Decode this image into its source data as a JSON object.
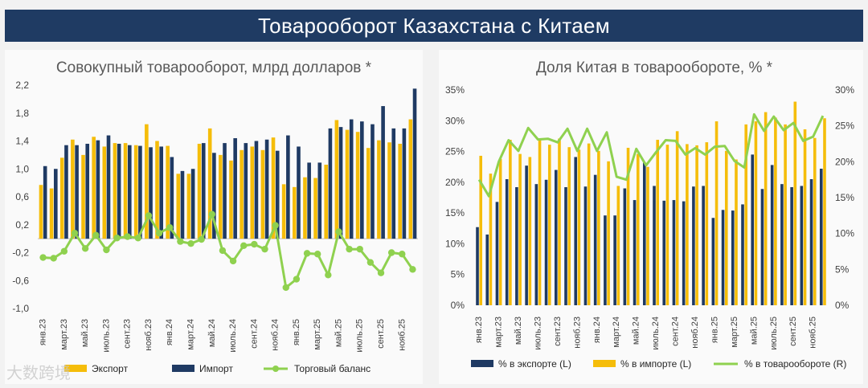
{
  "page_title": "Товарооборот Казахстана с Китаем",
  "watermark": "大数跨境",
  "colors": {
    "export": "#f5bd0a",
    "import": "#1f3a63",
    "line": "#8fd14f",
    "banner": "#1f3b63"
  },
  "chart_data": [
    {
      "type": "bar",
      "title": "Совокупный товарооборот, млрд долларов *",
      "ylim": [
        -1.0,
        2.2
      ],
      "yticks": [
        "2,2",
        "1,8",
        "1,4",
        "1,0",
        "0,6",
        "0,2",
        "-0,2",
        "-0,6",
        "-1,0"
      ],
      "categories": [
        "янв.23",
        "фев.23",
        "март.23",
        "апр.23",
        "май.23",
        "июнь.23",
        "июль.23",
        "авг.23",
        "сент.23",
        "окт.23",
        "нояб.23",
        "дек.23",
        "янв.24",
        "фев.24",
        "март.24",
        "апр.24",
        "май.24",
        "июнь.24",
        "июль.24",
        "авг.24",
        "сент.24",
        "окт.24",
        "нояб.24",
        "дек.24",
        "янв.25",
        "фев.25",
        "март.25",
        "апр.25",
        "май.25",
        "июнь.25",
        "июль.25",
        "авг.25",
        "сент.25",
        "окт.25",
        "нояб.25",
        "дек.25"
      ],
      "tick_labels": [
        "янв.23",
        "март.23",
        "май.23",
        "июль.23",
        "сент.23",
        "нояб.23",
        "янв.24",
        "март.24",
        "май.24",
        "июль.24",
        "сент.24",
        "нояб.24",
        "янв.25",
        "март.25",
        "май.25",
        "июль.25",
        "сент.25",
        "нояб.25"
      ],
      "series": [
        {
          "name": "Экспорт",
          "kind": "bar",
          "values": [
            0.77,
            0.72,
            1.16,
            1.42,
            1.2,
            1.46,
            1.32,
            1.37,
            1.37,
            1.34,
            1.64,
            1.4,
            1.33,
            0.93,
            0.93,
            1.36,
            1.58,
            1.2,
            1.12,
            1.27,
            1.32,
            1.27,
            1.45,
            0.78,
            0.74,
            0.88,
            0.87,
            1.06,
            1.7,
            1.56,
            1.53,
            1.3,
            1.41,
            1.38,
            1.36,
            1.71
          ]
        },
        {
          "name": "Импорт",
          "kind": "bar",
          "values": [
            1.04,
            1.0,
            1.34,
            1.34,
            1.36,
            1.41,
            1.48,
            1.36,
            1.34,
            1.33,
            1.31,
            1.32,
            1.17,
            0.97,
            1.0,
            1.37,
            1.23,
            1.37,
            1.44,
            1.37,
            1.4,
            1.42,
            1.26,
            1.48,
            1.32,
            1.09,
            1.09,
            1.58,
            1.6,
            1.71,
            1.68,
            1.64,
            1.9,
            1.58,
            1.58,
            2.15
          ]
        },
        {
          "name": "Торговый баланс",
          "kind": "line",
          "values": [
            -0.27,
            -0.28,
            -0.18,
            0.08,
            -0.14,
            0.05,
            -0.16,
            0.01,
            0.03,
            0.01,
            0.33,
            0.08,
            0.16,
            -0.04,
            -0.07,
            -0.01,
            0.35,
            -0.17,
            -0.32,
            -0.1,
            -0.08,
            -0.15,
            0.19,
            -0.7,
            -0.58,
            -0.21,
            -0.22,
            -0.52,
            0.1,
            -0.15,
            -0.15,
            -0.34,
            -0.49,
            -0.2,
            -0.22,
            -0.44
          ]
        }
      ],
      "legend": [
        "Экспорт",
        "Импорт",
        "Торговый баланс"
      ]
    },
    {
      "type": "bar",
      "title": "Доля Китая в товарообороте, % *",
      "ylim_left": [
        0,
        35
      ],
      "ylim_right": [
        0,
        30
      ],
      "yticks_left": [
        "35%",
        "30%",
        "25%",
        "20%",
        "15%",
        "10%",
        "5%",
        "0%"
      ],
      "yticks_right": [
        "30%",
        "25%",
        "20%",
        "15%",
        "10%",
        "5%",
        "0%"
      ],
      "categories": [
        "янв.23",
        "фев.23",
        "март.23",
        "апр.23",
        "май.23",
        "июнь.23",
        "июль.23",
        "авг.23",
        "сент.23",
        "окт.23",
        "нояб.23",
        "дек.23",
        "янв.24",
        "фев.24",
        "март.24",
        "апр.24",
        "май.24",
        "июнь.24",
        "июль.24",
        "авг.24",
        "сент.24",
        "окт.24",
        "нояб.24",
        "дек.24",
        "янв.25",
        "фев.25",
        "март.25",
        "апр.25",
        "май.25",
        "июнь.25",
        "июль.25",
        "авг.25",
        "сент.25",
        "окт.25",
        "нояб.25",
        "дек.25"
      ],
      "tick_labels": [
        "янв.23",
        "март.23",
        "май.23",
        "июль.23",
        "сент.23",
        "нояб.23",
        "янв.24",
        "март.24",
        "май.24",
        "июль.24",
        "сент.24",
        "нояб.24",
        "янв.25",
        "март.25",
        "май.25",
        "июль.25",
        "сент.25",
        "нояб.25"
      ],
      "series": [
        {
          "name": "% в экспорте (L)",
          "kind": "bar",
          "axis": "left",
          "values": [
            12.7,
            11.5,
            16.8,
            20.5,
            19.2,
            22.7,
            19.7,
            20.4,
            22.0,
            19.2,
            24.1,
            19.3,
            21.2,
            14.6,
            14.6,
            19.0,
            17.1,
            23.2,
            19.4,
            17.0,
            17.1,
            16.9,
            19.3,
            19.4,
            14.2,
            15.5,
            15.4,
            16.4,
            24.5,
            18.9,
            22.8,
            19.7,
            19.2,
            19.4,
            20.5,
            22.2
          ]
        },
        {
          "name": "% в импорте (L)",
          "kind": "bar",
          "axis": "left",
          "values": [
            24.3,
            21.4,
            23.8,
            26.9,
            24.6,
            24.1,
            27.0,
            26.1,
            27.1,
            25.7,
            25.3,
            26.3,
            25.1,
            23.4,
            19.4,
            25.6,
            24.6,
            22.5,
            26.9,
            26.1,
            28.3,
            26.2,
            26.0,
            26.5,
            29.9,
            25.1,
            23.7,
            29.4,
            29.9,
            31.4,
            30.5,
            29.4,
            33.1,
            28.6,
            27.2,
            30.4
          ]
        },
        {
          "name": "% в товарообороте (R)",
          "kind": "line",
          "axis": "right",
          "values": [
            17.5,
            15.2,
            20.0,
            23.0,
            21.5,
            24.7,
            23.1,
            23.2,
            22.7,
            24.6,
            21.5,
            24.6,
            21.5,
            24.1,
            17.9,
            17.5,
            21.8,
            19.5,
            21.3,
            23.0,
            22.9,
            21.0,
            21.9,
            21.0,
            22.1,
            22.2,
            20.1,
            19.2,
            26.6,
            24.3,
            26.3,
            24.4,
            25.4,
            22.9,
            23.5,
            26.4
          ]
        }
      ],
      "legend": [
        "% в экспорте (L)",
        "% в импорте (L)",
        "% в товарообороте (R)"
      ]
    }
  ]
}
